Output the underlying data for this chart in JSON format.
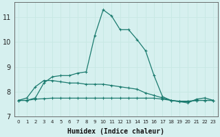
{
  "xlabel": "Humidex (Indice chaleur)",
  "ylabel": "",
  "background_color": "#d6f0ef",
  "grid_color": "#c8e8e4",
  "line_color": "#1a7a6e",
  "xlim": [
    -0.5,
    23.5
  ],
  "ylim": [
    7.0,
    11.6
  ],
  "yticks": [
    7,
    8,
    9,
    10,
    11
  ],
  "xticks": [
    0,
    1,
    2,
    3,
    4,
    5,
    6,
    7,
    8,
    9,
    10,
    11,
    12,
    13,
    14,
    15,
    16,
    17,
    18,
    19,
    20,
    21,
    22,
    23
  ],
  "series": [
    [
      7.65,
      7.65,
      7.75,
      8.35,
      8.6,
      8.65,
      8.65,
      8.75,
      8.8,
      10.25,
      11.3,
      11.05,
      10.5,
      10.5,
      10.1,
      9.65,
      8.65,
      7.8,
      7.65,
      7.6,
      7.55,
      7.7,
      7.75,
      7.65
    ],
    [
      7.65,
      7.75,
      8.2,
      8.45,
      8.45,
      8.4,
      8.35,
      8.35,
      8.3,
      8.3,
      8.3,
      8.25,
      8.2,
      8.15,
      8.1,
      7.95,
      7.85,
      7.75,
      7.65,
      7.6,
      7.6,
      7.65,
      7.65,
      7.65
    ],
    [
      7.65,
      7.65,
      7.7,
      7.72,
      7.74,
      7.74,
      7.74,
      7.74,
      7.74,
      7.74,
      7.74,
      7.74,
      7.74,
      7.74,
      7.74,
      7.74,
      7.74,
      7.7,
      7.65,
      7.62,
      7.62,
      7.65,
      7.65,
      7.65
    ]
  ],
  "xlabel_fontsize": 7,
  "xlabel_fontweight": "bold",
  "xlabel_family": "monospace",
  "ytick_fontsize": 7,
  "xtick_fontsize": 5
}
